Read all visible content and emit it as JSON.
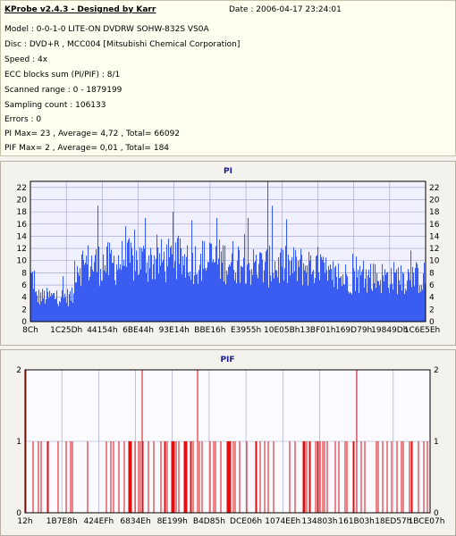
{
  "header": {
    "app_title": "KProbe v2.4.3 - Designed by Karr",
    "date": "Date : 2006-04-17 23:24:01",
    "lines": [
      "Model : 0-0-1-0 LITE-ON DVDRW SOHW-832S  VS0A",
      "Disc : DVD+R , MCC004 [Mitsubishi Chemical Corporation]",
      "Speed : 4x",
      "ECC blocks sum (PI/PIF) : 8/1",
      "Scanned range : 0 - 1879199",
      "Sampling count : 106133",
      "Errors : 0",
      "PI Max= 23 , Average= 4,72 , Total= 66092",
      "PIF Max= 2 , Average= 0,01 , Total= 184"
    ]
  },
  "chart_data": [
    {
      "type": "bar",
      "title": "PI",
      "color": "#3a5cf0",
      "background": "#f0f0ff",
      "grid": true,
      "ylim": [
        0,
        23
      ],
      "yticks": [
        0,
        2,
        4,
        6,
        8,
        10,
        12,
        14,
        16,
        18,
        20,
        22
      ],
      "xtick_labels": [
        "8Ch",
        "1C25Dh",
        "44154h",
        "6BE44h",
        "93E14h",
        "BBE16h",
        "E3955h",
        "10E05Bh",
        "13BF01h",
        "169D79h",
        "19849Dh",
        "1C6E5Eh"
      ],
      "x_range": [
        0,
        1879199
      ],
      "max": 23,
      "average": 4.72,
      "segments": [
        {
          "from": 0.0,
          "to": 0.01,
          "level": 8
        },
        {
          "from": 0.01,
          "to": 0.11,
          "level": 4.5
        },
        {
          "from": 0.11,
          "to": 0.22,
          "level": 10.5
        },
        {
          "from": 0.22,
          "to": 0.55,
          "level": 11
        },
        {
          "from": 0.55,
          "to": 0.74,
          "level": 10
        },
        {
          "from": 0.74,
          "to": 1.0,
          "level": 8
        }
      ],
      "spikes": [
        {
          "at": 0.17,
          "value": 19
        },
        {
          "at": 0.29,
          "value": 17
        },
        {
          "at": 0.36,
          "value": 18
        },
        {
          "at": 0.47,
          "value": 17
        },
        {
          "at": 0.55,
          "value": 17
        },
        {
          "at": 0.6,
          "value": 23
        },
        {
          "at": 0.61,
          "value": 19
        }
      ]
    },
    {
      "type": "bar",
      "title": "PIF",
      "color": "#e01010",
      "background": "#fafaff",
      "grid": true,
      "ylim": [
        0,
        2
      ],
      "yticks": [
        0,
        1,
        2
      ],
      "xtick_labels": [
        "12h",
        "1B7E8h",
        "424EFh",
        "6834Eh",
        "8E199h",
        "B4D85h",
        "DCE06h",
        "1074EEh",
        "134803h",
        "161B03h",
        "18ED57h",
        "1BCE07h"
      ],
      "x_range": [
        0,
        1879199
      ],
      "max": 2,
      "average": 0.01,
      "value_2_at": [
        0.003,
        0.29,
        0.425,
        0.82
      ]
    }
  ]
}
